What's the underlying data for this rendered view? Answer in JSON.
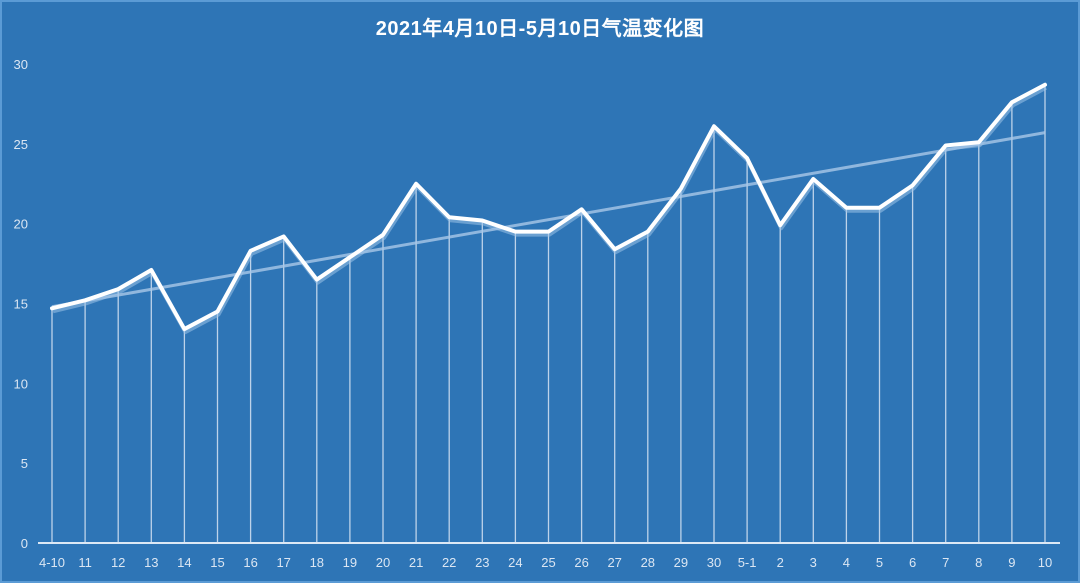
{
  "title": "2021年4月10日-5月10日气温变化图",
  "colors": {
    "background": "#2e75b6",
    "line": "#ffffff",
    "trendline": "#a9c8e8",
    "droplines": "#d6e4f3",
    "axis_text": "#dbe6f3"
  },
  "chart_data": {
    "type": "line",
    "title": "2021年4月10日-5月10日气温变化图",
    "xlabel": "",
    "ylabel": "",
    "ylim": [
      0,
      30
    ],
    "yticks": [
      0,
      5,
      10,
      15,
      20,
      25,
      30
    ],
    "grid": false,
    "legend": null,
    "categories": [
      "4-10",
      "11",
      "12",
      "13",
      "14",
      "15",
      "16",
      "17",
      "18",
      "19",
      "20",
      "21",
      "22",
      "23",
      "24",
      "25",
      "26",
      "27",
      "28",
      "29",
      "30",
      "5-1",
      "2",
      "3",
      "4",
      "5",
      "6",
      "7",
      "8",
      "9",
      "10"
    ],
    "series": [
      {
        "name": "气温",
        "values": [
          14.7,
          15.2,
          15.9,
          17.1,
          13.4,
          14.5,
          18.3,
          19.2,
          16.5,
          17.9,
          19.3,
          22.5,
          20.4,
          20.2,
          19.5,
          19.5,
          20.9,
          18.4,
          19.5,
          22.2,
          26.1,
          24.1,
          19.9,
          22.8,
          21.0,
          21.0,
          22.4,
          24.9,
          25.1,
          27.6,
          28.7
        ]
      }
    ],
    "trendline": {
      "type": "linear",
      "start": 14.8,
      "end": 25.7
    },
    "drop_lines": true
  }
}
